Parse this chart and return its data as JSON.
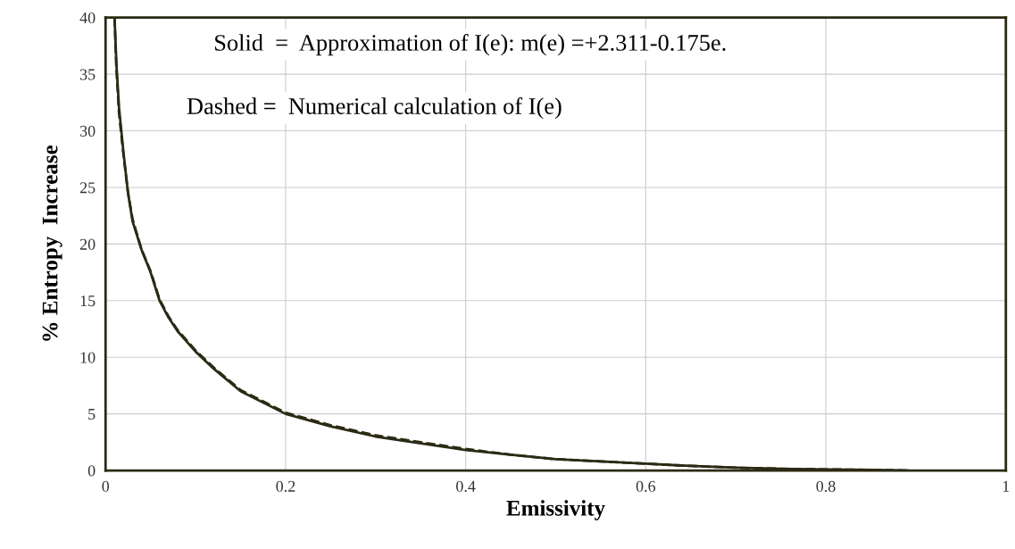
{
  "chart_data": {
    "type": "line",
    "xlabel": "Emissivity",
    "ylabel": "% Entropy  Increase",
    "annotations": [
      "Solid  =  Approximation of I(e): m(e) =+2.311-0.175e.",
      "Dashed =  Numerical calculation of I(e)"
    ],
    "xlim": [
      0,
      1
    ],
    "ylim": [
      0,
      40
    ],
    "xticks": [
      0,
      0.2,
      0.4,
      0.6,
      0.8,
      1
    ],
    "yticks": [
      0,
      5,
      10,
      15,
      20,
      25,
      30,
      35,
      40
    ],
    "grid": true,
    "series": [
      {
        "color": "#2b2a14",
        "line_style": "solid",
        "x": [
          0.01,
          0.012,
          0.015,
          0.02,
          0.025,
          0.03,
          0.04,
          0.05,
          0.06,
          0.07,
          0.08,
          0.1,
          0.12,
          0.15,
          0.2,
          0.25,
          0.3,
          0.35,
          0.4,
          0.45,
          0.5,
          0.55,
          0.6,
          0.65,
          0.7,
          0.75,
          0.8,
          0.85,
          0.89
        ],
        "values": [
          40,
          36,
          32,
          28,
          24.5,
          22,
          19.5,
          17.5,
          15,
          13.5,
          12.3,
          10.5,
          9,
          7,
          5,
          3.9,
          3,
          2.4,
          1.8,
          1.4,
          1.0,
          0.8,
          0.6,
          0.4,
          0.25,
          0.15,
          0.1,
          0.05,
          0
        ]
      },
      {
        "color": "#2b2a14",
        "line_style": "dashed",
        "x": [
          0.01,
          0.012,
          0.015,
          0.02,
          0.025,
          0.03,
          0.04,
          0.05,
          0.06,
          0.07,
          0.08,
          0.1,
          0.12,
          0.15,
          0.2,
          0.25,
          0.3,
          0.35,
          0.4,
          0.45,
          0.5,
          0.55,
          0.6,
          0.65,
          0.7,
          0.75,
          0.8,
          0.85,
          0.89
        ],
        "values": [
          40,
          35.5,
          31.5,
          27.8,
          24.5,
          22.2,
          19.5,
          17.6,
          15.1,
          13.6,
          12.4,
          10.6,
          9.1,
          7.1,
          5.1,
          4.0,
          3.1,
          2.5,
          1.9,
          1.4,
          1.0,
          0.8,
          0.6,
          0.4,
          0.25,
          0.15,
          0.1,
          0.05,
          0
        ]
      }
    ]
  }
}
